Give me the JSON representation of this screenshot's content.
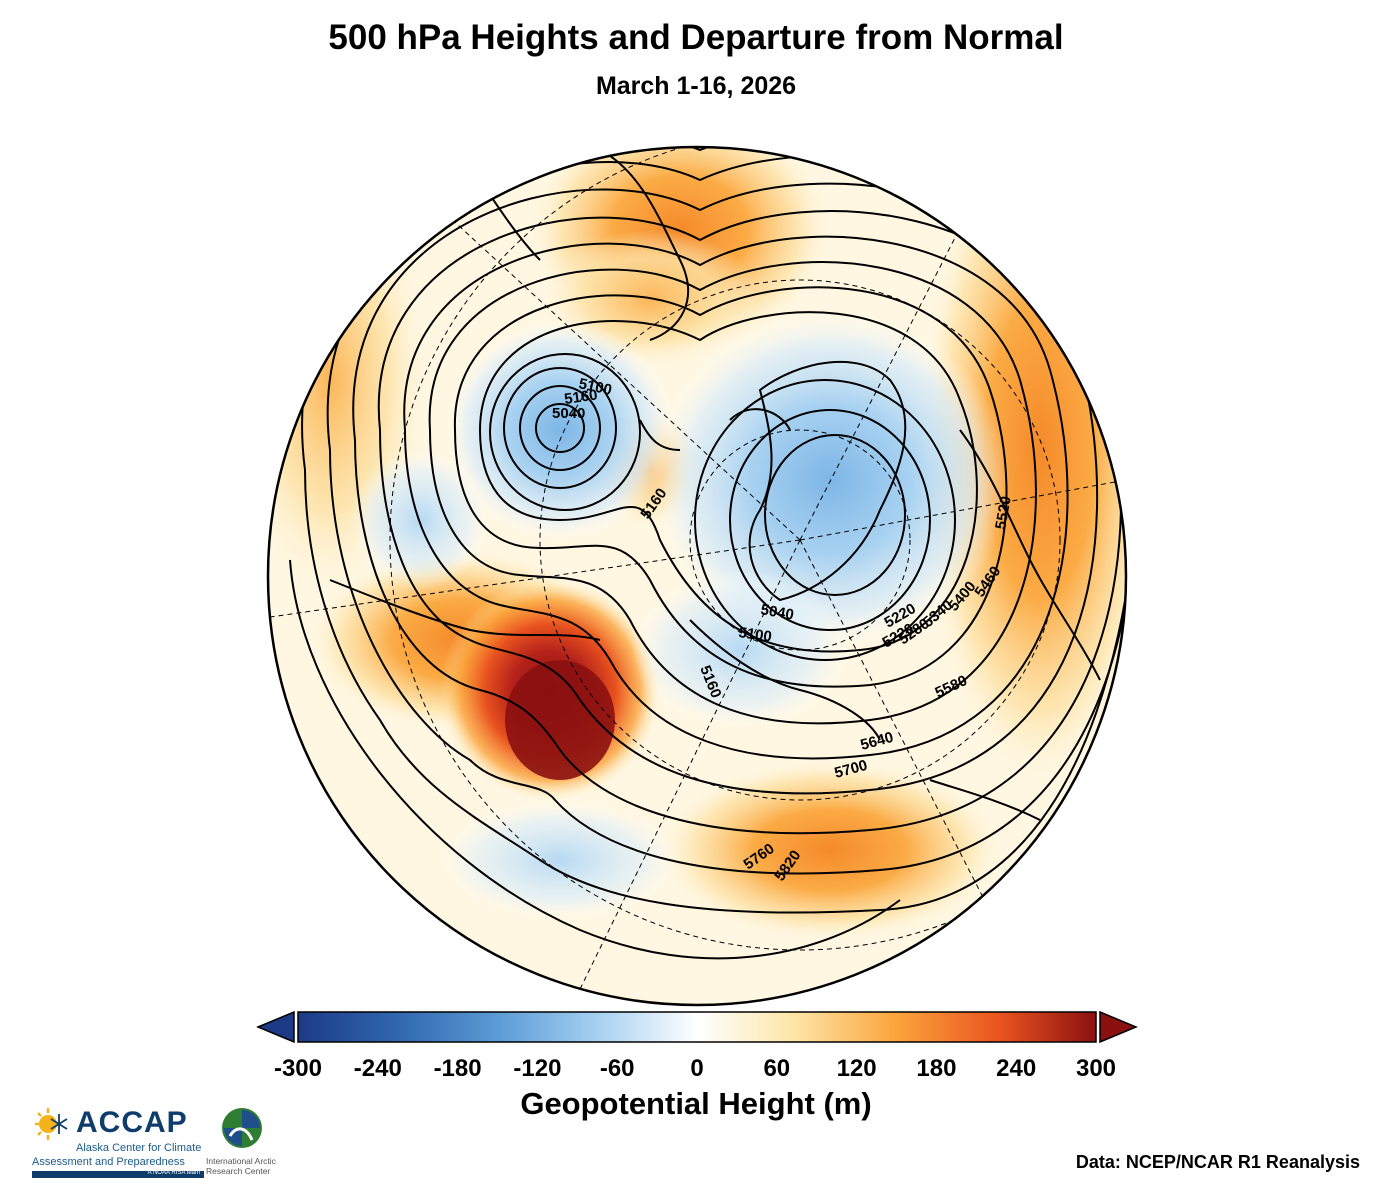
{
  "title": "500 hPa Heights and Departure from Normal",
  "subtitle": "March 1-16, 2026",
  "colorbar": {
    "label": "Geopotential Height (m)",
    "ticks": [
      "-300",
      "-240",
      "-180",
      "-120",
      "-60",
      "0",
      "60",
      "120",
      "180",
      "240",
      "300"
    ],
    "min": -300,
    "max": 300,
    "colors": [
      "#1d3a86",
      "#2f65ad",
      "#5b9bd6",
      "#a9d2f1",
      "#ffffff",
      "#fde6a8",
      "#fba43c",
      "#e9531f",
      "#8b1111"
    ]
  },
  "contour_labels": [
    "5100",
    "5160",
    "5040",
    "5160",
    "5220",
    "5220",
    "5280",
    "5340",
    "5400",
    "5460",
    "5520",
    "5580",
    "5640",
    "5700",
    "5760",
    "5820",
    "5160",
    "5100",
    "5040"
  ],
  "credit": "Data: NCEP/NCAR R1 Reanalysis",
  "logos": {
    "accap": {
      "name": "ACCAP",
      "line1": "Alaska Center for Climate",
      "line2": "Assessment and Preparedness",
      "tag": "A NOAA RISA team"
    },
    "iarc": {
      "line1": "International Arctic",
      "line2": "Research Center"
    }
  }
}
